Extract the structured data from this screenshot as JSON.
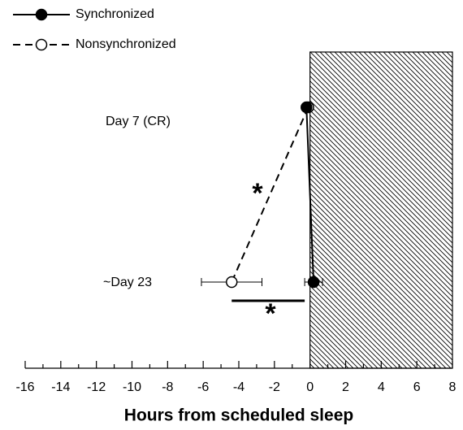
{
  "chart_data": {
    "type": "dot",
    "x_label": "Hours from scheduled sleep",
    "categories": [
      "Day 7 (CR)",
      "~Day 23"
    ],
    "series": [
      {
        "name": "Synchronized",
        "color": "#000000",
        "marker_fill": "#000000",
        "dashed": false,
        "values": [
          -0.2,
          0.2
        ],
        "errors": [
          null,
          0.5
        ]
      },
      {
        "name": "Nonsynchronized",
        "color": "#000000",
        "marker_fill": "#ffffff",
        "dashed": true,
        "values": [
          -0.1,
          -4.4
        ],
        "errors": [
          null,
          1.7
        ]
      }
    ],
    "shaded_region": [
      0,
      8
    ],
    "annotations": [
      "*",
      "*"
    ],
    "xlim": [
      -16,
      8
    ],
    "xticks": [
      -16,
      -14,
      -12,
      -10,
      -8,
      -6,
      -4,
      -2,
      0,
      2,
      4,
      6,
      8
    ],
    "xminorticks": [
      -15,
      -13,
      -11,
      -9,
      -7,
      -5,
      -3,
      -1,
      1,
      3,
      5,
      7
    ]
  }
}
